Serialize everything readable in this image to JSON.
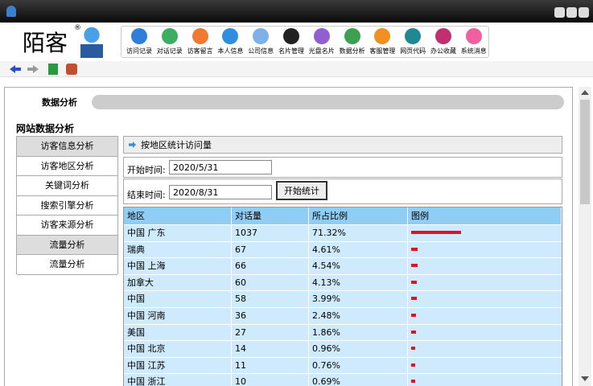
{
  "app": {
    "logo": "陌客",
    "logo_mark": "®"
  },
  "toolbar": [
    "访问记录",
    "对话记录",
    "访客留言",
    "本人信息",
    "公司信息",
    "名片管理",
    "光盘名片",
    "数据分析",
    "客服管理",
    "网页代码",
    "办公收藏",
    "系统消息"
  ],
  "tab": "数据分析",
  "section_title": "网站数据分析",
  "menu": [
    {
      "text": "访客信息分析",
      "header": true
    },
    {
      "text": "访客地区分析",
      "header": false
    },
    {
      "text": "关键词分析",
      "header": false
    },
    {
      "text": "搜索引擎分析",
      "header": false
    },
    {
      "text": "访客来源分析",
      "header": false
    },
    {
      "text": "流量分析",
      "header": true
    },
    {
      "text": "流量分析",
      "header": false
    }
  ],
  "panel_title": "按地区统计访问量",
  "form": {
    "start_label": "开始时间:",
    "start_value": "2020/5/31",
    "end_label": "结束时间:",
    "end_value": "2020/8/31",
    "button": "开始统计"
  },
  "table": {
    "headers": [
      "地区",
      "对话量",
      "所占比例",
      "图例"
    ],
    "rows": [
      {
        "region": "中国 广东",
        "count": 1037,
        "share": 71.32,
        "share_label": "71.32%"
      },
      {
        "region": "瑞典",
        "count": 67,
        "share": 4.61,
        "share_label": "4.61%"
      },
      {
        "region": "中国 上海",
        "count": 66,
        "share": 4.54,
        "share_label": "4.54%"
      },
      {
        "region": "加拿大",
        "count": 60,
        "share": 4.13,
        "share_label": "4.13%"
      },
      {
        "region": "中国",
        "count": 58,
        "share": 3.99,
        "share_label": "3.99%"
      },
      {
        "region": "中国 河南",
        "count": 36,
        "share": 2.48,
        "share_label": "2.48%"
      },
      {
        "region": "美国",
        "count": 27,
        "share": 1.86,
        "share_label": "1.86%"
      },
      {
        "region": "中国 北京",
        "count": 14,
        "share": 0.96,
        "share_label": "0.96%"
      },
      {
        "region": "中国 江苏",
        "count": 11,
        "share": 0.76,
        "share_label": "0.76%"
      },
      {
        "region": "中国 浙江",
        "count": 10,
        "share": 0.69,
        "share_label": "0.69%"
      }
    ]
  }
}
